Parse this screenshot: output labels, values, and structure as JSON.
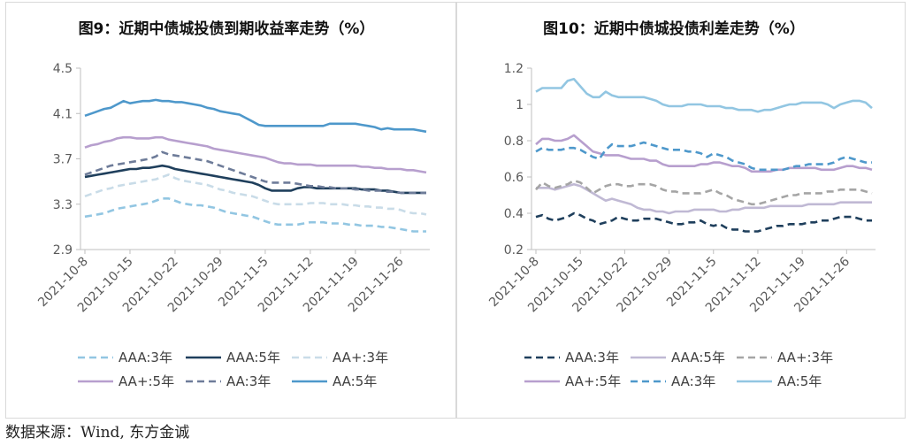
{
  "source": "数据来源：Wind, 东方金诚",
  "chart_data": [
    {
      "type": "line",
      "title": "图9：近期中债城投债到期收益率走势（%）",
      "xlabel": "",
      "ylabel": "",
      "ylim": [
        2.9,
        4.5
      ],
      "yticks": [
        2.9,
        3.3,
        3.7,
        4.1,
        4.5
      ],
      "ytick_labels": [
        "2.9",
        "3.3",
        "3.7",
        "4.1",
        "4.5"
      ],
      "x_ticks": [
        {
          "label": "2021-10-8",
          "index": 0
        },
        {
          "label": "2021-10-15",
          "index": 7
        },
        {
          "label": "2021-10-22",
          "index": 14
        },
        {
          "label": "2021-10-29",
          "index": 21
        },
        {
          "label": "2021-11-5",
          "index": 28
        },
        {
          "label": "2021-11-12",
          "index": 35
        },
        {
          "label": "2021-11-19",
          "index": 42
        },
        {
          "label": "2021-11-26",
          "index": 49
        }
      ],
      "x_count": 54,
      "grid": false,
      "legend_position": "bottom",
      "series": [
        {
          "name": "AAA:3年",
          "color": "#92c6e2",
          "dash": "dash",
          "values": [
            3.19,
            3.2,
            3.21,
            3.22,
            3.24,
            3.26,
            3.27,
            3.28,
            3.29,
            3.3,
            3.31,
            3.33,
            3.35,
            3.35,
            3.33,
            3.31,
            3.3,
            3.29,
            3.29,
            3.28,
            3.27,
            3.25,
            3.23,
            3.22,
            3.21,
            3.2,
            3.19,
            3.17,
            3.15,
            3.13,
            3.12,
            3.12,
            3.12,
            3.12,
            3.13,
            3.14,
            3.14,
            3.14,
            3.13,
            3.13,
            3.13,
            3.12,
            3.12,
            3.11,
            3.11,
            3.11,
            3.1,
            3.1,
            3.09,
            3.08,
            3.07,
            3.06,
            3.06,
            3.06
          ]
        },
        {
          "name": "AAA:5年",
          "color": "#1f3f5c",
          "dash": "solid",
          "values": [
            3.54,
            3.55,
            3.56,
            3.57,
            3.58,
            3.59,
            3.6,
            3.61,
            3.61,
            3.62,
            3.62,
            3.63,
            3.64,
            3.63,
            3.61,
            3.6,
            3.59,
            3.58,
            3.57,
            3.56,
            3.55,
            3.54,
            3.53,
            3.52,
            3.51,
            3.5,
            3.49,
            3.47,
            3.44,
            3.42,
            3.42,
            3.42,
            3.42,
            3.44,
            3.45,
            3.45,
            3.44,
            3.44,
            3.44,
            3.44,
            3.44,
            3.44,
            3.44,
            3.43,
            3.43,
            3.43,
            3.42,
            3.42,
            3.41,
            3.4,
            3.4,
            3.4,
            3.4,
            3.4
          ]
        },
        {
          "name": "AA+:3年",
          "color": "#c9dce8",
          "dash": "dash",
          "values": [
            3.37,
            3.39,
            3.41,
            3.43,
            3.44,
            3.46,
            3.47,
            3.48,
            3.49,
            3.5,
            3.51,
            3.52,
            3.54,
            3.56,
            3.53,
            3.51,
            3.5,
            3.49,
            3.48,
            3.47,
            3.45,
            3.43,
            3.42,
            3.4,
            3.39,
            3.38,
            3.37,
            3.35,
            3.33,
            3.31,
            3.3,
            3.3,
            3.3,
            3.3,
            3.3,
            3.31,
            3.31,
            3.31,
            3.3,
            3.3,
            3.3,
            3.29,
            3.29,
            3.28,
            3.28,
            3.27,
            3.27,
            3.26,
            3.26,
            3.25,
            3.23,
            3.22,
            3.22,
            3.21
          ]
        },
        {
          "name": "AA+:5年",
          "color": "#b79fce",
          "dash": "solid",
          "values": [
            3.8,
            3.82,
            3.83,
            3.85,
            3.86,
            3.88,
            3.89,
            3.89,
            3.88,
            3.88,
            3.88,
            3.89,
            3.89,
            3.87,
            3.86,
            3.85,
            3.84,
            3.83,
            3.82,
            3.81,
            3.79,
            3.78,
            3.77,
            3.76,
            3.75,
            3.74,
            3.73,
            3.72,
            3.71,
            3.69,
            3.67,
            3.66,
            3.66,
            3.65,
            3.65,
            3.65,
            3.64,
            3.64,
            3.64,
            3.64,
            3.64,
            3.64,
            3.64,
            3.63,
            3.63,
            3.62,
            3.62,
            3.61,
            3.61,
            3.61,
            3.6,
            3.6,
            3.59,
            3.58
          ]
        },
        {
          "name": "AA:3年",
          "color": "#6e7c99",
          "dash": "dash",
          "values": [
            3.56,
            3.58,
            3.6,
            3.62,
            3.64,
            3.65,
            3.66,
            3.67,
            3.68,
            3.69,
            3.7,
            3.72,
            3.76,
            3.74,
            3.73,
            3.72,
            3.71,
            3.7,
            3.69,
            3.68,
            3.66,
            3.64,
            3.62,
            3.6,
            3.58,
            3.56,
            3.54,
            3.52,
            3.5,
            3.49,
            3.49,
            3.49,
            3.49,
            3.48,
            3.47,
            3.46,
            3.46,
            3.45,
            3.45,
            3.44,
            3.44,
            3.44,
            3.43,
            3.43,
            3.42,
            3.42,
            3.42,
            3.41,
            3.41,
            3.4,
            3.4,
            3.4,
            3.4,
            3.4
          ]
        },
        {
          "name": "AA:5年",
          "color": "#4e98cb",
          "dash": "solid",
          "values": [
            4.08,
            4.1,
            4.12,
            4.14,
            4.15,
            4.18,
            4.21,
            4.19,
            4.2,
            4.21,
            4.21,
            4.22,
            4.21,
            4.21,
            4.2,
            4.2,
            4.19,
            4.18,
            4.17,
            4.15,
            4.14,
            4.12,
            4.11,
            4.1,
            4.09,
            4.06,
            4.03,
            4.0,
            3.99,
            3.99,
            3.99,
            3.99,
            3.99,
            3.99,
            3.99,
            3.99,
            3.99,
            3.99,
            4.01,
            4.01,
            4.01,
            4.01,
            4.01,
            4.0,
            3.99,
            3.98,
            3.96,
            3.97,
            3.96,
            3.96,
            3.96,
            3.96,
            3.95,
            3.94
          ]
        }
      ]
    },
    {
      "type": "line",
      "title": "图10：近期中债城投债利差走势（%）",
      "xlabel": "",
      "ylabel": "",
      "ylim": [
        0.2,
        1.2
      ],
      "yticks": [
        0.2,
        0.4,
        0.6,
        0.8,
        1.0,
        1.2
      ],
      "ytick_labels": [
        "0.2",
        "0.4",
        "0.6",
        "0.8",
        "1",
        "1.2"
      ],
      "x_ticks": [
        {
          "label": "2021-10-8",
          "index": 0
        },
        {
          "label": "2021-10-15",
          "index": 7
        },
        {
          "label": "2021-10-22",
          "index": 14
        },
        {
          "label": "2021-10-29",
          "index": 21
        },
        {
          "label": "2021-11-5",
          "index": 28
        },
        {
          "label": "2021-11-12",
          "index": 35
        },
        {
          "label": "2021-11-19",
          "index": 42
        },
        {
          "label": "2021-11-26",
          "index": 49
        }
      ],
      "x_count": 54,
      "grid": false,
      "legend_position": "bottom",
      "series": [
        {
          "name": "AAA:3年",
          "color": "#1f3f5c",
          "dash": "dash",
          "values": [
            0.38,
            0.39,
            0.37,
            0.36,
            0.37,
            0.38,
            0.4,
            0.39,
            0.37,
            0.36,
            0.34,
            0.35,
            0.36,
            0.38,
            0.37,
            0.36,
            0.36,
            0.37,
            0.37,
            0.37,
            0.36,
            0.35,
            0.34,
            0.34,
            0.35,
            0.35,
            0.36,
            0.34,
            0.33,
            0.34,
            0.32,
            0.31,
            0.31,
            0.3,
            0.3,
            0.3,
            0.31,
            0.32,
            0.33,
            0.33,
            0.34,
            0.34,
            0.34,
            0.35,
            0.35,
            0.36,
            0.36,
            0.37,
            0.38,
            0.38,
            0.38,
            0.37,
            0.36,
            0.36
          ]
        },
        {
          "name": "AAA:5年",
          "color": "#c0b9d4",
          "dash": "solid",
          "values": [
            0.54,
            0.54,
            0.54,
            0.53,
            0.54,
            0.55,
            0.56,
            0.55,
            0.53,
            0.51,
            0.49,
            0.47,
            0.48,
            0.47,
            0.46,
            0.45,
            0.43,
            0.42,
            0.42,
            0.41,
            0.41,
            0.4,
            0.41,
            0.41,
            0.41,
            0.42,
            0.42,
            0.42,
            0.42,
            0.41,
            0.41,
            0.42,
            0.42,
            0.43,
            0.43,
            0.43,
            0.43,
            0.44,
            0.44,
            0.44,
            0.44,
            0.44,
            0.44,
            0.45,
            0.45,
            0.45,
            0.45,
            0.45,
            0.46,
            0.46,
            0.46,
            0.46,
            0.46,
            0.46
          ]
        },
        {
          "name": "AA+:3年",
          "color": "#a5a5a5",
          "dash": "dash",
          "values": [
            0.53,
            0.57,
            0.55,
            0.54,
            0.55,
            0.56,
            0.58,
            0.57,
            0.54,
            0.51,
            0.53,
            0.55,
            0.56,
            0.56,
            0.55,
            0.55,
            0.56,
            0.56,
            0.56,
            0.55,
            0.53,
            0.52,
            0.52,
            0.51,
            0.51,
            0.51,
            0.51,
            0.52,
            0.53,
            0.51,
            0.5,
            0.48,
            0.47,
            0.46,
            0.45,
            0.45,
            0.46,
            0.47,
            0.48,
            0.49,
            0.5,
            0.5,
            0.51,
            0.51,
            0.51,
            0.51,
            0.52,
            0.52,
            0.53,
            0.53,
            0.53,
            0.53,
            0.52,
            0.51
          ]
        },
        {
          "name": "AA+:5年",
          "color": "#b79fce",
          "dash": "solid",
          "values": [
            0.78,
            0.81,
            0.81,
            0.8,
            0.8,
            0.81,
            0.83,
            0.8,
            0.77,
            0.74,
            0.73,
            0.72,
            0.72,
            0.72,
            0.71,
            0.7,
            0.7,
            0.7,
            0.69,
            0.69,
            0.67,
            0.66,
            0.66,
            0.66,
            0.66,
            0.66,
            0.67,
            0.67,
            0.68,
            0.68,
            0.67,
            0.66,
            0.66,
            0.65,
            0.63,
            0.63,
            0.63,
            0.63,
            0.64,
            0.64,
            0.65,
            0.65,
            0.65,
            0.65,
            0.65,
            0.64,
            0.64,
            0.64,
            0.65,
            0.66,
            0.66,
            0.65,
            0.65,
            0.64
          ]
        },
        {
          "name": "AA:3年",
          "color": "#4e98cb",
          "dash": "dash",
          "values": [
            0.74,
            0.76,
            0.75,
            0.75,
            0.75,
            0.76,
            0.76,
            0.75,
            0.73,
            0.71,
            0.7,
            0.75,
            0.78,
            0.77,
            0.77,
            0.77,
            0.78,
            0.79,
            0.78,
            0.77,
            0.76,
            0.75,
            0.75,
            0.75,
            0.74,
            0.74,
            0.73,
            0.71,
            0.73,
            0.72,
            0.71,
            0.69,
            0.68,
            0.67,
            0.65,
            0.64,
            0.64,
            0.64,
            0.64,
            0.64,
            0.65,
            0.66,
            0.66,
            0.67,
            0.67,
            0.67,
            0.67,
            0.68,
            0.7,
            0.71,
            0.7,
            0.69,
            0.68,
            0.68
          ]
        },
        {
          "name": "AA:5年",
          "color": "#92c6e2",
          "dash": "solid",
          "values": [
            1.07,
            1.09,
            1.09,
            1.09,
            1.09,
            1.13,
            1.14,
            1.1,
            1.06,
            1.04,
            1.04,
            1.07,
            1.05,
            1.04,
            1.04,
            1.04,
            1.04,
            1.04,
            1.03,
            1.02,
            1.0,
            0.99,
            0.99,
            0.99,
            1.0,
            1.0,
            1.0,
            0.99,
            0.99,
            0.99,
            0.98,
            0.98,
            0.97,
            0.97,
            0.97,
            0.96,
            0.97,
            0.97,
            0.98,
            0.99,
            1.0,
            1.0,
            1.01,
            1.01,
            1.01,
            1.01,
            1.0,
            0.98,
            1.0,
            1.01,
            1.02,
            1.02,
            1.01,
            0.98
          ]
        }
      ]
    }
  ]
}
